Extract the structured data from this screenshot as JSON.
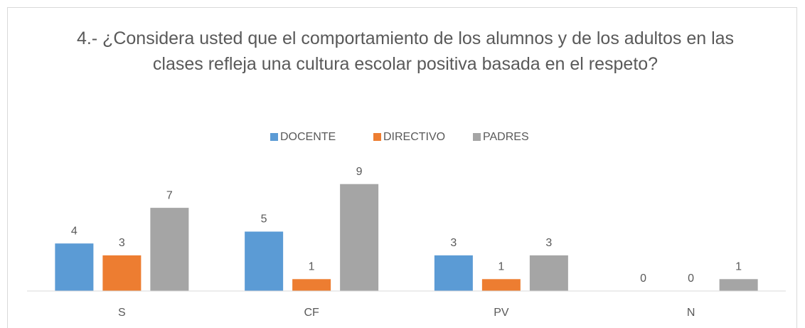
{
  "chart_data": {
    "type": "bar",
    "title": "4.- ¿Considera usted que el comportamiento de los alumnos y de los adultos en las clases refleja una cultura escolar positiva basada en el respeto?",
    "categories": [
      "S",
      "CF",
      "PV",
      "N"
    ],
    "series": [
      {
        "name": "DOCENTE",
        "color": "#5b9bd5",
        "values": [
          4,
          5,
          3,
          0
        ]
      },
      {
        "name": "DIRECTIVO",
        "color": "#ed7d31",
        "values": [
          3,
          1,
          1,
          0
        ]
      },
      {
        "name": "PADRES",
        "color": "#a5a5a5",
        "values": [
          7,
          9,
          3,
          1
        ]
      }
    ],
    "ylim": [
      0,
      10
    ],
    "legend": "top"
  }
}
